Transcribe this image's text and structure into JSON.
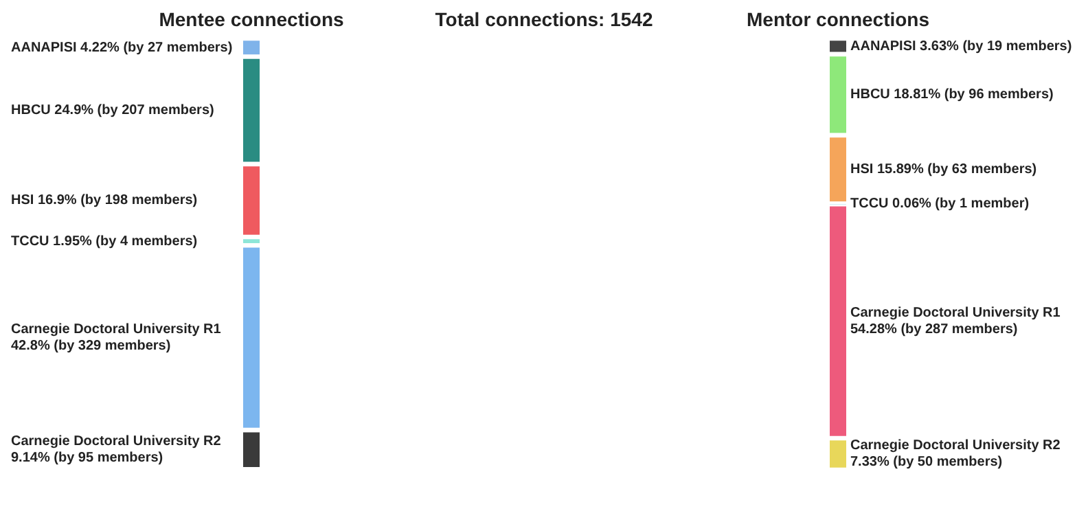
{
  "chart_data": {
    "type": "other",
    "title": "Total connections: 1542",
    "categories": [
      "AANAPISI",
      "HBCU",
      "HSI",
      "TCCU",
      "Carnegie Doctoral University R1",
      "Carnegie Doctoral University R2",
      "AANAPISI",
      "HBCU",
      "HSI",
      "TCCU",
      "Carnegie Doctoral University R1",
      "Carnegie Doctoral University R2"
    ],
    "series": [
      {
        "name": "Mentee connections",
        "values": [
          4.22,
          24.9,
          16.9,
          1.95,
          42.8,
          9.14,
          null,
          null,
          null,
          null,
          null,
          null
        ],
        "value_labels": [
          "4.22% (by 27 members)",
          "24.9% (by 207 members)",
          "16.9% (by 198 members)",
          "1.95% (by 4 members)",
          "42.8% (by 329 members)",
          "9.14% (by 95 members)",
          null,
          null,
          null,
          null,
          null,
          null
        ],
        "colors": [
          "#7fb3ea",
          "#2a8c82",
          "#ef5a5f",
          "#8ee6d8",
          "#7cb6ef",
          "#3a3a3a",
          null,
          null,
          null,
          null,
          null,
          null
        ]
      },
      {
        "name": "Mentor connections",
        "values": [
          null,
          null,
          null,
          null,
          null,
          null,
          3.63,
          18.81,
          15.89,
          0.06,
          54.28,
          7.33
        ],
        "value_labels": [
          null,
          null,
          null,
          null,
          null,
          null,
          "3.63% (by 19 members)",
          "18.81% (by 96 members)",
          "15.89% (by 63 members)",
          "0.06% (by 1 member)",
          "54.28% (by 287 members)",
          "7.33% (by 50 members)"
        ],
        "colors": [
          null,
          null,
          null,
          null,
          null,
          null,
          "#444444",
          "#8ee87a",
          "#f5a55a",
          "#7fd0e8",
          "#ee5a7c",
          "#e8d75a"
        ]
      }
    ]
  }
}
